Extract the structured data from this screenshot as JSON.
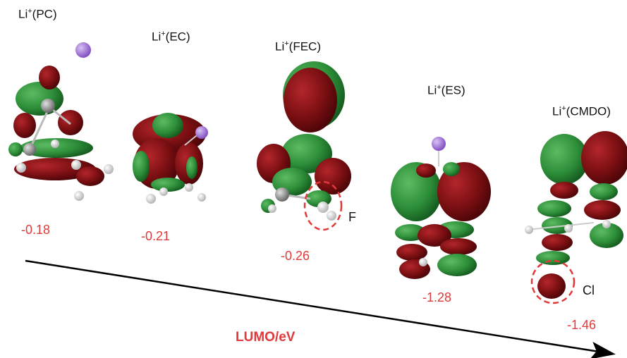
{
  "molecules": [
    {
      "id": "pc",
      "prefix": "Li",
      "charge": "+",
      "solvent": "(PC)",
      "lumo": "-0.18"
    },
    {
      "id": "ec",
      "prefix": "Li",
      "charge": "+",
      "solvent": "(EC)",
      "lumo": "-0.21"
    },
    {
      "id": "fec",
      "prefix": "Li",
      "charge": "+",
      "solvent": "(FEC)",
      "lumo": "-0.26"
    },
    {
      "id": "es",
      "prefix": "Li",
      "charge": "+",
      "solvent": "(ES)",
      "lumo": "-1.28"
    },
    {
      "id": "cmdo",
      "prefix": "Li",
      "charge": "+",
      "solvent": "(CMDO)",
      "lumo": "-1.46"
    }
  ],
  "atom_tags": {
    "fluorine": "F",
    "chlorine": "Cl"
  },
  "axis": {
    "label": "LUMO/eV"
  },
  "colors": {
    "lobe_red": "#7a0f12",
    "lobe_green": "#2e8f3a",
    "energy_text": "#e03a3a",
    "highlight_circle": "#e03a3a",
    "lithium": "#9b6fd0",
    "carbon": "#8a8a8a",
    "oxygen": "#d01010",
    "hydrogen": "#e8e8e8"
  }
}
